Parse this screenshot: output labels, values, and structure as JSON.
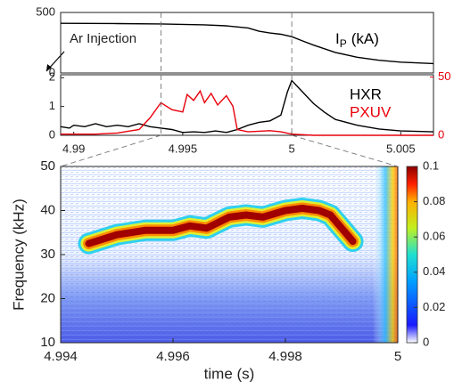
{
  "chart_data": [
    {
      "type": "line",
      "annotation": "Ar Injection",
      "xlim": [
        4.9894,
        5.0065
      ],
      "ylim": [
        0,
        500
      ],
      "yticks": [
        0,
        500
      ],
      "series": [
        {
          "name": "I",
          "subscript": "P",
          "unit": "(kA)",
          "color": "#000000",
          "x": [
            4.9894,
            4.992,
            4.994,
            4.996,
            4.997,
            4.998,
            4.9985,
            4.999,
            4.9995,
            5.0,
            5.0005,
            5.001,
            5.002,
            5.003,
            5.004,
            5.005,
            5.0065
          ],
          "values": [
            410,
            408,
            405,
            398,
            390,
            372,
            345,
            330,
            320,
            300,
            265,
            230,
            170,
            130,
            105,
            90,
            78
          ]
        }
      ]
    },
    {
      "type": "line",
      "xlim": [
        4.9894,
        5.0065
      ],
      "xticks": [
        4.99,
        4.995,
        5,
        5.005
      ],
      "ylim": [
        0,
        2.1
      ],
      "yticks": [
        0,
        1,
        2
      ],
      "y2lim": [
        0,
        52
      ],
      "y2ticks": [
        0,
        50
      ],
      "series": [
        {
          "name": "HXR",
          "color": "#000000",
          "x": [
            4.9894,
            4.9898,
            4.99,
            4.9905,
            4.991,
            4.9915,
            4.992,
            4.9925,
            4.993,
            4.9935,
            4.994,
            4.9945,
            4.995,
            4.9955,
            4.996,
            4.9965,
            4.997,
            4.9975,
            4.998,
            4.9985,
            4.999,
            4.9995,
            4.9998,
            5.0,
            5.0005,
            5.001,
            5.0015,
            5.002,
            5.003,
            5.004,
            5.005,
            5.0065
          ],
          "values": [
            0.3,
            0.25,
            0.35,
            0.3,
            0.4,
            0.3,
            0.35,
            0.3,
            0.4,
            0.3,
            0.25,
            0.2,
            0.1,
            0.12,
            0.1,
            0.15,
            0.1,
            0.2,
            0.35,
            0.45,
            0.5,
            0.7,
            1.5,
            1.9,
            1.5,
            1.1,
            0.8,
            0.55,
            0.35,
            0.22,
            0.15,
            0.12
          ]
        },
        {
          "name": "PXUV",
          "color": "#e8000b",
          "axis": "y2",
          "x": [
            4.9894,
            4.991,
            4.992,
            4.993,
            4.9935,
            4.994,
            4.9945,
            4.995,
            4.9952,
            4.9955,
            4.9958,
            4.996,
            4.9963,
            4.9966,
            4.997,
            4.9973,
            4.9975,
            4.998,
            4.999,
            4.9995,
            5.0,
            5.001,
            5.0065
          ],
          "values": [
            1,
            1,
            2,
            5,
            15,
            28,
            22,
            20,
            35,
            30,
            38,
            28,
            36,
            26,
            34,
            25,
            5,
            3,
            4,
            3,
            1,
            0,
            0
          ]
        }
      ]
    },
    {
      "type": "spectrogram",
      "xlabel": "time (s)",
      "ylabel": "Frequency (kHz)",
      "xlim": [
        4.994,
        5
      ],
      "xticks": [
        4.994,
        4.996,
        4.998,
        5
      ],
      "ylim": [
        10,
        50
      ],
      "yticks": [
        10,
        20,
        30,
        40,
        50
      ],
      "clim": [
        0,
        0.1
      ],
      "cticks": [
        0,
        0.02,
        0.04,
        0.06,
        0.08,
        0.1
      ],
      "series": [
        {
          "x": [
            4.9945,
            4.995,
            4.9955,
            4.996,
            4.9963,
            4.9966,
            4.997,
            4.9973,
            4.9976,
            4.998,
            4.9983,
            4.9986,
            4.9988,
            4.999,
            4.9992
          ],
          "values": [
            32.5,
            34.5,
            35.5,
            35.5,
            36.5,
            36,
            38.5,
            39,
            38.5,
            40,
            40.5,
            40,
            39,
            36,
            33
          ]
        }
      ]
    }
  ]
}
